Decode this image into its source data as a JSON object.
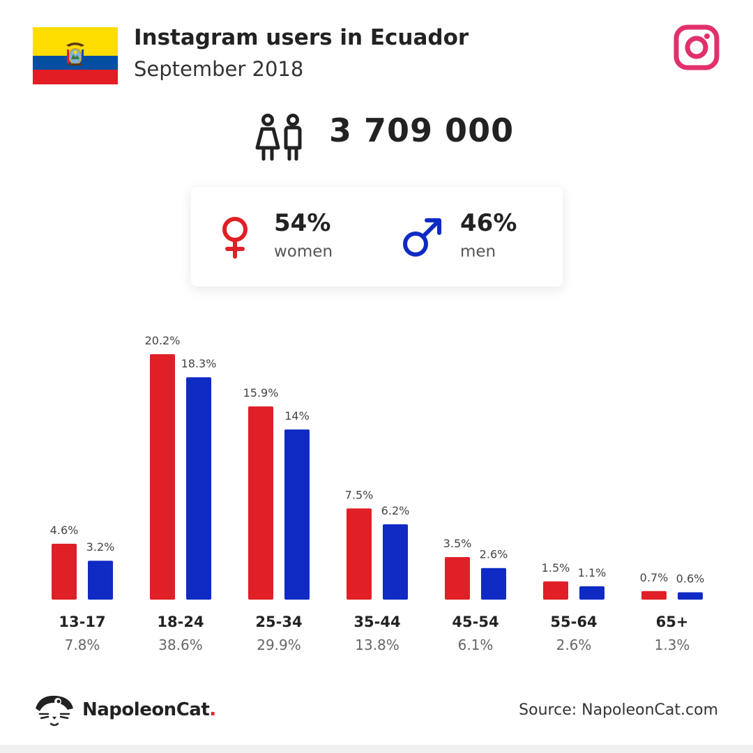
{
  "header": {
    "title": "Instagram users in Ecuador",
    "subtitle": "September 2018"
  },
  "total_users": "3 709 000",
  "gender": {
    "women_pct": "54%",
    "women_label": "women",
    "men_pct": "46%",
    "men_label": "men"
  },
  "colors": {
    "women": "#e01f26",
    "men": "#0f2bc4",
    "instagram": "#e1306c"
  },
  "icons": [
    "ecuador-flag",
    "instagram-icon",
    "users-icon",
    "female-symbol-icon",
    "male-symbol-icon",
    "napoleoncat-logo-icon"
  ],
  "chart_data": {
    "type": "bar",
    "categories": [
      "13-17",
      "18-24",
      "25-34",
      "35-44",
      "45-54",
      "55-64",
      "65+"
    ],
    "category_totals": [
      "7.8%",
      "38.6%",
      "29.9%",
      "13.8%",
      "6.1%",
      "2.6%",
      "1.3%"
    ],
    "series": [
      {
        "values": [
          4.6,
          20.2,
          15.9,
          7.5,
          3.5,
          1.5,
          0.7
        ],
        "labels": [
          "4.6%",
          "20.2%",
          "15.9%",
          "7.5%",
          "3.5%",
          "1.5%",
          "0.7%"
        ],
        "color": "#e01f26"
      },
      {
        "values": [
          3.2,
          18.3,
          14,
          6.2,
          2.6,
          1.1,
          0.6
        ],
        "labels": [
          "3.2%",
          "18.3%",
          "14%",
          "6.2%",
          "2.6%",
          "1.1%",
          "0.6%"
        ],
        "color": "#0f2bc4"
      }
    ],
    "ylim": [
      0,
      20.2
    ]
  },
  "footer": {
    "logo_name": "NapoleonCat",
    "logo_dot": ".",
    "source": "Source: NapoleonCat.com"
  }
}
